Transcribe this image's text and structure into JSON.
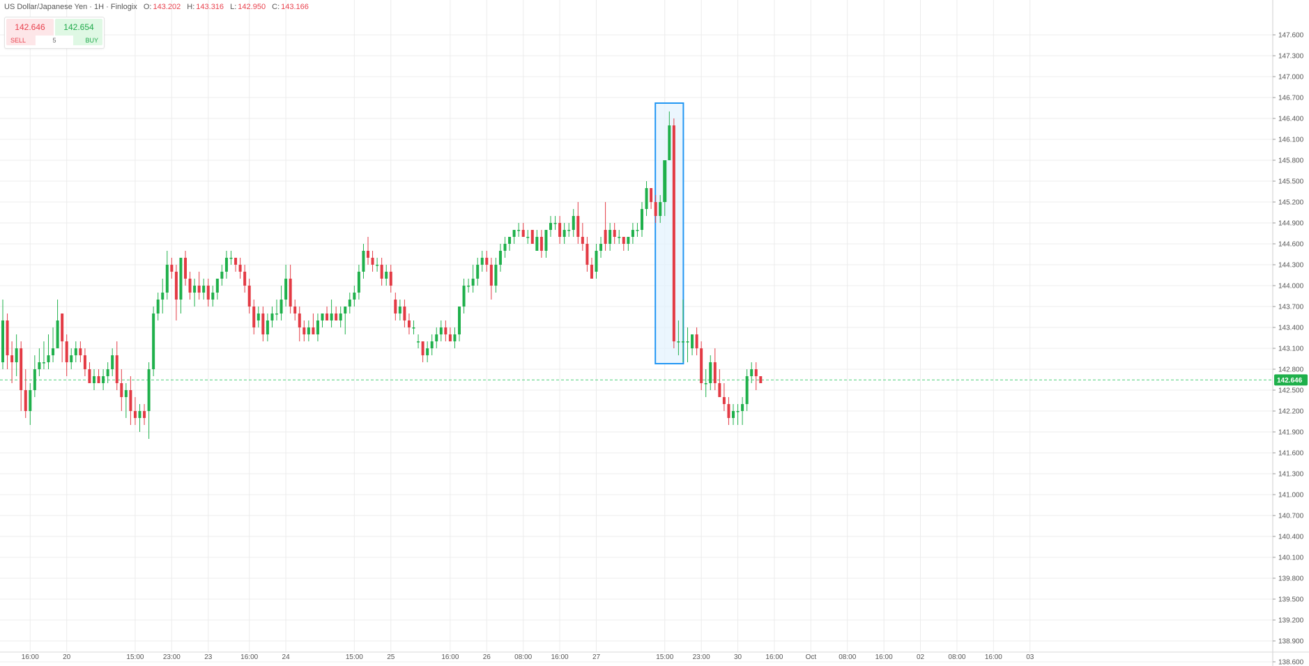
{
  "legend": {
    "symbol": "US Dollar/Japanese Yen · 1H · Finlogix",
    "open_label": "O:",
    "open": "143.202",
    "high_label": "H:",
    "high": "143.316",
    "low_label": "L:",
    "low": "142.950",
    "close_label": "C:",
    "close": "143.166"
  },
  "trade": {
    "sell_price": "142.646",
    "buy_price": "142.654",
    "sell_label": "SELL",
    "buy_label": "BUY",
    "quantity": "5"
  },
  "colors": {
    "up": "#1fb04b",
    "down": "#e33a44",
    "grid": "#ececec",
    "highlight_border": "#2196f3",
    "highlight_fill": "#e3f2fd",
    "price_line": "#4cd07a"
  },
  "chart_data": {
    "type": "candlestick",
    "ylim": [
      138.6,
      148.1
    ],
    "yticks": [
      138.6,
      138.9,
      139.2,
      139.5,
      139.8,
      140.1,
      140.4,
      140.7,
      141.0,
      141.3,
      141.6,
      141.9,
      142.2,
      142.5,
      142.8,
      143.1,
      143.4,
      143.7,
      144.0,
      144.3,
      144.6,
      144.9,
      145.2,
      145.5,
      145.8,
      146.1,
      146.4,
      146.7,
      147.0,
      147.3,
      147.6
    ],
    "ytick_labels": [
      "138.600",
      "138.900",
      "139.200",
      "139.500",
      "139.800",
      "140.100",
      "140.400",
      "140.700",
      "141.000",
      "141.300",
      "141.600",
      "141.900",
      "142.200",
      "142.500",
      "142.800",
      "143.100",
      "143.400",
      "143.700",
      "144.000",
      "144.300",
      "144.600",
      "144.900",
      "145.200",
      "145.500",
      "145.800",
      "146.100",
      "146.400",
      "146.700",
      "147.000",
      "147.300",
      "147.600"
    ],
    "xticks": [
      {
        "label": "16:00",
        "bar": 6
      },
      {
        "label": "20",
        "bar": 14
      },
      {
        "label": "15:00",
        "bar": 29
      },
      {
        "label": "23:00",
        "bar": 37
      },
      {
        "label": "23",
        "bar": 45
      },
      {
        "label": "16:00",
        "bar": 54
      },
      {
        "label": "24",
        "bar": 62
      },
      {
        "label": "15:00",
        "bar": 77
      },
      {
        "label": "25",
        "bar": 85
      },
      {
        "label": "16:00",
        "bar": 98
      },
      {
        "label": "26",
        "bar": 106
      },
      {
        "label": "08:00",
        "bar": 114
      },
      {
        "label": "16:00",
        "bar": 122
      },
      {
        "label": "27",
        "bar": 130
      },
      {
        "label": "15:00",
        "bar": 145
      },
      {
        "label": "23:00",
        "bar": 153
      },
      {
        "label": "30",
        "bar": 161
      },
      {
        "label": "16:00",
        "bar": 169
      },
      {
        "label": "Oct",
        "bar": 177
      },
      {
        "label": "08:00",
        "bar": 185
      },
      {
        "label": "16:00",
        "bar": 193
      },
      {
        "label": "02",
        "bar": 201
      },
      {
        "label": "08:00",
        "bar": 209
      },
      {
        "label": "16:00",
        "bar": 217
      },
      {
        "label": "03",
        "bar": 225
      }
    ],
    "current_price": 142.646,
    "current_price_label": "142.646",
    "highlight_bars": [
      144,
      148
    ],
    "candles": [
      {
        "o": 142.9,
        "h": 143.8,
        "l": 142.8,
        "c": 143.5
      },
      {
        "o": 143.5,
        "h": 143.6,
        "l": 142.8,
        "c": 143.0
      },
      {
        "o": 143.0,
        "h": 143.2,
        "l": 142.6,
        "c": 142.9
      },
      {
        "o": 142.9,
        "h": 143.3,
        "l": 142.7,
        "c": 143.1
      },
      {
        "o": 143.1,
        "h": 143.2,
        "l": 142.2,
        "c": 142.5
      },
      {
        "o": 142.5,
        "h": 142.8,
        "l": 142.1,
        "c": 142.2
      },
      {
        "o": 142.2,
        "h": 142.6,
        "l": 142.0,
        "c": 142.5
      },
      {
        "o": 142.5,
        "h": 143.0,
        "l": 142.4,
        "c": 142.8
      },
      {
        "o": 142.8,
        "h": 143.1,
        "l": 142.7,
        "c": 142.9
      },
      {
        "o": 142.9,
        "h": 143.2,
        "l": 142.8,
        "c": 142.9
      },
      {
        "o": 142.9,
        "h": 143.3,
        "l": 142.8,
        "c": 143.0
      },
      {
        "o": 143.0,
        "h": 143.4,
        "l": 142.9,
        "c": 143.1
      },
      {
        "o": 143.1,
        "h": 143.8,
        "l": 143.1,
        "c": 143.5
      },
      {
        "o": 143.6,
        "h": 143.6,
        "l": 142.9,
        "c": 143.2
      },
      {
        "o": 143.2,
        "h": 143.3,
        "l": 142.7,
        "c": 142.9
      },
      {
        "o": 142.9,
        "h": 143.1,
        "l": 142.8,
        "c": 143.0
      },
      {
        "o": 143.0,
        "h": 143.2,
        "l": 142.9,
        "c": 143.1
      },
      {
        "o": 143.1,
        "h": 143.2,
        "l": 142.9,
        "c": 143.0
      },
      {
        "o": 143.0,
        "h": 143.1,
        "l": 142.7,
        "c": 142.8
      },
      {
        "o": 142.8,
        "h": 142.9,
        "l": 142.6,
        "c": 142.6
      },
      {
        "o": 142.6,
        "h": 142.8,
        "l": 142.5,
        "c": 142.7
      },
      {
        "o": 142.7,
        "h": 142.8,
        "l": 142.6,
        "c": 142.6
      },
      {
        "o": 142.6,
        "h": 142.8,
        "l": 142.5,
        "c": 142.7
      },
      {
        "o": 142.7,
        "h": 142.9,
        "l": 142.6,
        "c": 142.8
      },
      {
        "o": 142.8,
        "h": 143.1,
        "l": 142.7,
        "c": 143.0
      },
      {
        "o": 143.0,
        "h": 143.2,
        "l": 142.5,
        "c": 142.6
      },
      {
        "o": 142.6,
        "h": 142.8,
        "l": 142.2,
        "c": 142.4
      },
      {
        "o": 142.4,
        "h": 142.6,
        "l": 142.1,
        "c": 142.5
      },
      {
        "o": 142.5,
        "h": 142.7,
        "l": 142.0,
        "c": 142.2
      },
      {
        "o": 142.2,
        "h": 142.4,
        "l": 142.0,
        "c": 142.1
      },
      {
        "o": 142.1,
        "h": 142.3,
        "l": 141.9,
        "c": 142.2
      },
      {
        "o": 142.2,
        "h": 142.3,
        "l": 142.0,
        "c": 142.1
      },
      {
        "o": 142.2,
        "h": 142.9,
        "l": 141.8,
        "c": 142.8
      },
      {
        "o": 142.8,
        "h": 143.7,
        "l": 142.7,
        "c": 143.6
      },
      {
        "o": 143.6,
        "h": 143.9,
        "l": 143.5,
        "c": 143.8
      },
      {
        "o": 143.8,
        "h": 144.1,
        "l": 143.6,
        "c": 143.9
      },
      {
        "o": 143.9,
        "h": 144.5,
        "l": 143.8,
        "c": 144.3
      },
      {
        "o": 144.3,
        "h": 144.4,
        "l": 144.1,
        "c": 144.2
      },
      {
        "o": 144.2,
        "h": 144.3,
        "l": 143.5,
        "c": 143.8
      },
      {
        "o": 143.8,
        "h": 144.4,
        "l": 143.6,
        "c": 144.4
      },
      {
        "o": 144.4,
        "h": 144.5,
        "l": 144.0,
        "c": 144.1
      },
      {
        "o": 144.1,
        "h": 144.2,
        "l": 143.8,
        "c": 143.9
      },
      {
        "o": 143.9,
        "h": 144.1,
        "l": 143.7,
        "c": 144.0
      },
      {
        "o": 144.0,
        "h": 144.2,
        "l": 143.8,
        "c": 143.9
      },
      {
        "o": 143.9,
        "h": 144.1,
        "l": 143.8,
        "c": 144.0
      },
      {
        "o": 144.0,
        "h": 144.1,
        "l": 143.7,
        "c": 143.8
      },
      {
        "o": 143.8,
        "h": 144.0,
        "l": 143.7,
        "c": 143.9
      },
      {
        "o": 143.9,
        "h": 144.1,
        "l": 143.8,
        "c": 144.1
      },
      {
        "o": 144.1,
        "h": 144.3,
        "l": 144.0,
        "c": 144.2
      },
      {
        "o": 144.2,
        "h": 144.5,
        "l": 144.1,
        "c": 144.4
      },
      {
        "o": 144.4,
        "h": 144.5,
        "l": 144.3,
        "c": 144.4
      },
      {
        "o": 144.4,
        "h": 144.4,
        "l": 144.2,
        "c": 144.3
      },
      {
        "o": 144.3,
        "h": 144.4,
        "l": 144.1,
        "c": 144.2
      },
      {
        "o": 144.2,
        "h": 144.3,
        "l": 143.9,
        "c": 144.0
      },
      {
        "o": 144.0,
        "h": 144.1,
        "l": 143.6,
        "c": 143.7
      },
      {
        "o": 143.7,
        "h": 143.8,
        "l": 143.3,
        "c": 143.4
      },
      {
        "o": 143.5,
        "h": 143.7,
        "l": 143.4,
        "c": 143.6
      },
      {
        "o": 143.6,
        "h": 143.7,
        "l": 143.2,
        "c": 143.3
      },
      {
        "o": 143.3,
        "h": 143.6,
        "l": 143.2,
        "c": 143.5
      },
      {
        "o": 143.5,
        "h": 143.7,
        "l": 143.4,
        "c": 143.6
      },
      {
        "o": 143.6,
        "h": 143.8,
        "l": 143.5,
        "c": 143.6
      },
      {
        "o": 143.6,
        "h": 144.0,
        "l": 143.5,
        "c": 143.8
      },
      {
        "o": 143.8,
        "h": 144.3,
        "l": 143.7,
        "c": 144.1
      },
      {
        "o": 144.1,
        "h": 144.3,
        "l": 143.6,
        "c": 143.7
      },
      {
        "o": 143.7,
        "h": 143.8,
        "l": 143.5,
        "c": 143.6
      },
      {
        "o": 143.6,
        "h": 143.7,
        "l": 143.2,
        "c": 143.4
      },
      {
        "o": 143.4,
        "h": 143.5,
        "l": 143.2,
        "c": 143.3
      },
      {
        "o": 143.3,
        "h": 143.5,
        "l": 143.2,
        "c": 143.4
      },
      {
        "o": 143.4,
        "h": 143.6,
        "l": 143.3,
        "c": 143.3
      },
      {
        "o": 143.3,
        "h": 143.6,
        "l": 143.2,
        "c": 143.5
      },
      {
        "o": 143.5,
        "h": 143.6,
        "l": 143.4,
        "c": 143.6
      },
      {
        "o": 143.6,
        "h": 143.7,
        "l": 143.5,
        "c": 143.5
      },
      {
        "o": 143.5,
        "h": 143.8,
        "l": 143.4,
        "c": 143.6
      },
      {
        "o": 143.6,
        "h": 143.7,
        "l": 143.5,
        "c": 143.5
      },
      {
        "o": 143.5,
        "h": 143.7,
        "l": 143.4,
        "c": 143.6
      },
      {
        "o": 143.6,
        "h": 143.7,
        "l": 143.3,
        "c": 143.7
      },
      {
        "o": 143.7,
        "h": 143.9,
        "l": 143.6,
        "c": 143.8
      },
      {
        "o": 143.8,
        "h": 144.0,
        "l": 143.7,
        "c": 143.9
      },
      {
        "o": 143.9,
        "h": 144.3,
        "l": 143.8,
        "c": 144.2
      },
      {
        "o": 144.2,
        "h": 144.6,
        "l": 144.1,
        "c": 144.5
      },
      {
        "o": 144.5,
        "h": 144.7,
        "l": 144.3,
        "c": 144.4
      },
      {
        "o": 144.4,
        "h": 144.5,
        "l": 144.2,
        "c": 144.3
      },
      {
        "o": 144.3,
        "h": 144.4,
        "l": 144.2,
        "c": 144.3
      },
      {
        "o": 144.3,
        "h": 144.4,
        "l": 144.0,
        "c": 144.1
      },
      {
        "o": 144.1,
        "h": 144.3,
        "l": 144.0,
        "c": 144.2
      },
      {
        "o": 144.2,
        "h": 144.3,
        "l": 143.9,
        "c": 144.0
      },
      {
        "o": 143.8,
        "h": 143.9,
        "l": 143.5,
        "c": 143.6
      },
      {
        "o": 143.6,
        "h": 143.8,
        "l": 143.5,
        "c": 143.7
      },
      {
        "o": 143.7,
        "h": 143.8,
        "l": 143.4,
        "c": 143.5
      },
      {
        "o": 143.5,
        "h": 143.6,
        "l": 143.3,
        "c": 143.4
      },
      {
        "o": 143.4,
        "h": 143.5,
        "l": 143.3,
        "c": 143.4
      },
      {
        "o": 143.2,
        "h": 143.3,
        "l": 143.1,
        "c": 143.2
      },
      {
        "o": 143.2,
        "h": 143.2,
        "l": 142.9,
        "c": 143.0
      },
      {
        "o": 143.0,
        "h": 143.2,
        "l": 142.9,
        "c": 143.1
      },
      {
        "o": 143.1,
        "h": 143.3,
        "l": 143.0,
        "c": 143.2
      },
      {
        "o": 143.2,
        "h": 143.4,
        "l": 143.1,
        "c": 143.3
      },
      {
        "o": 143.3,
        "h": 143.5,
        "l": 143.2,
        "c": 143.4
      },
      {
        "o": 143.4,
        "h": 143.5,
        "l": 143.2,
        "c": 143.3
      },
      {
        "o": 143.3,
        "h": 143.4,
        "l": 143.2,
        "c": 143.2
      },
      {
        "o": 143.2,
        "h": 143.4,
        "l": 143.1,
        "c": 143.3
      },
      {
        "o": 143.3,
        "h": 143.7,
        "l": 143.2,
        "c": 143.7
      },
      {
        "o": 143.7,
        "h": 144.1,
        "l": 143.6,
        "c": 144.0
      },
      {
        "o": 144.0,
        "h": 144.1,
        "l": 143.9,
        "c": 144.0
      },
      {
        "o": 144.0,
        "h": 144.3,
        "l": 143.9,
        "c": 144.1
      },
      {
        "o": 144.1,
        "h": 144.4,
        "l": 144.0,
        "c": 144.3
      },
      {
        "o": 144.3,
        "h": 144.5,
        "l": 144.2,
        "c": 144.4
      },
      {
        "o": 144.4,
        "h": 144.5,
        "l": 144.2,
        "c": 144.3
      },
      {
        "o": 144.3,
        "h": 144.4,
        "l": 143.8,
        "c": 144.0
      },
      {
        "o": 144.0,
        "h": 144.4,
        "l": 143.9,
        "c": 144.3
      },
      {
        "o": 144.3,
        "h": 144.6,
        "l": 144.2,
        "c": 144.5
      },
      {
        "o": 144.5,
        "h": 144.7,
        "l": 144.4,
        "c": 144.6
      },
      {
        "o": 144.6,
        "h": 144.7,
        "l": 144.5,
        "c": 144.7
      },
      {
        "o": 144.7,
        "h": 144.8,
        "l": 144.6,
        "c": 144.8
      },
      {
        "o": 144.8,
        "h": 144.9,
        "l": 144.7,
        "c": 144.8
      },
      {
        "o": 144.8,
        "h": 144.9,
        "l": 144.7,
        "c": 144.7
      },
      {
        "o": 144.7,
        "h": 144.8,
        "l": 144.6,
        "c": 144.7
      },
      {
        "o": 144.8,
        "h": 144.8,
        "l": 144.6,
        "c": 144.6
      },
      {
        "o": 144.5,
        "h": 144.8,
        "l": 144.5,
        "c": 144.7
      },
      {
        "o": 144.7,
        "h": 144.8,
        "l": 144.4,
        "c": 144.5
      },
      {
        "o": 144.5,
        "h": 144.8,
        "l": 144.4,
        "c": 144.8
      },
      {
        "o": 144.8,
        "h": 145.0,
        "l": 144.7,
        "c": 144.9
      },
      {
        "o": 144.9,
        "h": 145.0,
        "l": 144.8,
        "c": 144.9
      },
      {
        "o": 144.9,
        "h": 145.0,
        "l": 144.6,
        "c": 144.7
      },
      {
        "o": 144.7,
        "h": 144.9,
        "l": 144.6,
        "c": 144.8
      },
      {
        "o": 144.8,
        "h": 144.9,
        "l": 144.7,
        "c": 144.8
      },
      {
        "o": 144.8,
        "h": 145.1,
        "l": 144.7,
        "c": 145.0
      },
      {
        "o": 145.0,
        "h": 145.2,
        "l": 144.6,
        "c": 144.7
      },
      {
        "o": 144.7,
        "h": 144.9,
        "l": 144.5,
        "c": 144.6
      },
      {
        "o": 144.6,
        "h": 144.7,
        "l": 144.2,
        "c": 144.3
      },
      {
        "o": 144.3,
        "h": 144.4,
        "l": 144.1,
        "c": 144.1
      },
      {
        "o": 144.2,
        "h": 144.6,
        "l": 144.1,
        "c": 144.5
      },
      {
        "o": 144.5,
        "h": 144.7,
        "l": 144.4,
        "c": 144.6
      },
      {
        "o": 144.8,
        "h": 145.2,
        "l": 144.5,
        "c": 144.6
      },
      {
        "o": 144.6,
        "h": 144.9,
        "l": 144.5,
        "c": 144.8
      },
      {
        "o": 144.8,
        "h": 144.9,
        "l": 144.6,
        "c": 144.7
      },
      {
        "o": 144.7,
        "h": 144.8,
        "l": 144.6,
        "c": 144.7
      },
      {
        "o": 144.7,
        "h": 144.7,
        "l": 144.5,
        "c": 144.6
      },
      {
        "o": 144.6,
        "h": 144.7,
        "l": 144.5,
        "c": 144.7
      },
      {
        "o": 144.7,
        "h": 144.9,
        "l": 144.6,
        "c": 144.8
      },
      {
        "o": 144.8,
        "h": 144.9,
        "l": 144.7,
        "c": 144.8
      },
      {
        "o": 144.8,
        "h": 145.2,
        "l": 144.7,
        "c": 145.1
      },
      {
        "o": 145.1,
        "h": 145.5,
        "l": 145.0,
        "c": 145.4
      },
      {
        "o": 145.4,
        "h": 145.4,
        "l": 145.1,
        "c": 145.2
      },
      {
        "o": 145.2,
        "h": 145.3,
        "l": 144.9,
        "c": 145.0
      },
      {
        "o": 145.0,
        "h": 145.3,
        "l": 144.9,
        "c": 145.2
      },
      {
        "o": 145.2,
        "h": 145.8,
        "l": 145.0,
        "c": 145.8
      },
      {
        "o": 145.8,
        "h": 146.5,
        "l": 145.8,
        "c": 146.3
      },
      {
        "o": 146.3,
        "h": 146.4,
        "l": 143.1,
        "c": 143.2
      },
      {
        "o": 143.2,
        "h": 143.5,
        "l": 143.0,
        "c": 143.2
      },
      {
        "o": 143.2,
        "h": 143.8,
        "l": 142.9,
        "c": 143.2
      },
      {
        "o": 143.2,
        "h": 143.4,
        "l": 142.9,
        "c": 143.2
      },
      {
        "o": 143.1,
        "h": 143.3,
        "l": 143.0,
        "c": 143.3
      },
      {
        "o": 143.3,
        "h": 143.4,
        "l": 143.0,
        "c": 143.1
      },
      {
        "o": 143.1,
        "h": 143.2,
        "l": 142.5,
        "c": 142.6
      },
      {
        "o": 142.6,
        "h": 142.8,
        "l": 142.4,
        "c": 142.6
      },
      {
        "o": 142.6,
        "h": 143.0,
        "l": 142.5,
        "c": 142.9
      },
      {
        "o": 142.9,
        "h": 143.1,
        "l": 142.5,
        "c": 142.6
      },
      {
        "o": 142.6,
        "h": 142.8,
        "l": 142.4,
        "c": 142.4
      },
      {
        "o": 142.4,
        "h": 142.6,
        "l": 142.2,
        "c": 142.3
      },
      {
        "o": 142.3,
        "h": 142.4,
        "l": 142.0,
        "c": 142.1
      },
      {
        "o": 142.1,
        "h": 142.3,
        "l": 142.0,
        "c": 142.2
      },
      {
        "o": 142.2,
        "h": 142.3,
        "l": 142.0,
        "c": 142.2
      },
      {
        "o": 142.2,
        "h": 142.4,
        "l": 142.0,
        "c": 142.3
      },
      {
        "o": 142.3,
        "h": 142.8,
        "l": 142.2,
        "c": 142.7
      },
      {
        "o": 142.7,
        "h": 142.9,
        "l": 142.6,
        "c": 142.8
      },
      {
        "o": 142.8,
        "h": 142.9,
        "l": 142.5,
        "c": 142.7
      },
      {
        "o": 142.7,
        "h": 142.7,
        "l": 142.6,
        "c": 142.6
      }
    ]
  }
}
